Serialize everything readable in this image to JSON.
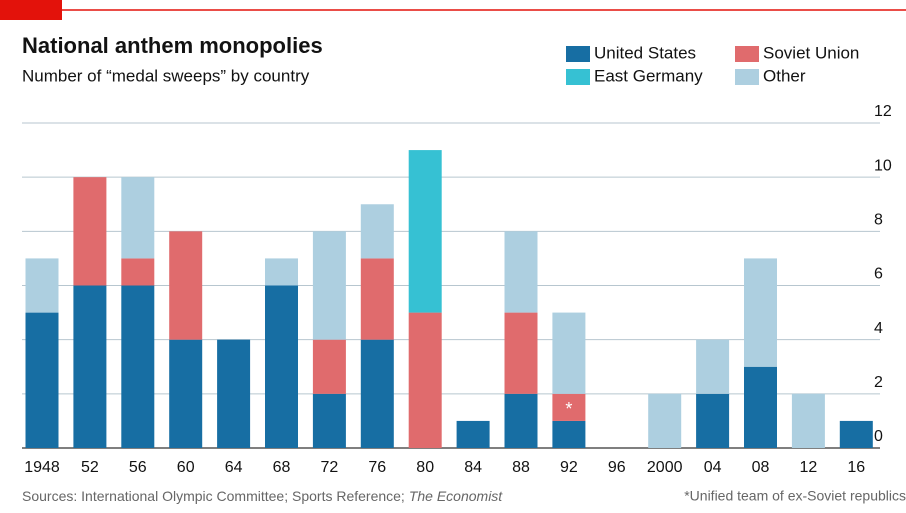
{
  "chart_data": {
    "type": "stacked_bar",
    "title": "National anthem monopolies",
    "subtitle": "Number of “medal sweeps” by country",
    "categories": [
      "1948",
      "52",
      "56",
      "60",
      "64",
      "68",
      "72",
      "76",
      "80",
      "84",
      "88",
      "92",
      "96",
      "2000",
      "04",
      "08",
      "12",
      "16"
    ],
    "series": [
      {
        "name": "United States",
        "color": "#176ea3",
        "values": [
          5,
          6,
          6,
          4,
          4,
          6,
          2,
          4,
          0,
          1,
          2,
          1,
          0,
          0,
          2,
          3,
          0,
          1
        ]
      },
      {
        "name": "Soviet Union",
        "color": "#e06b6d",
        "values": [
          0,
          4,
          1,
          4,
          0,
          0,
          2,
          3,
          5,
          0,
          3,
          1,
          0,
          0,
          0,
          0,
          0,
          0
        ]
      },
      {
        "name": "East Germany",
        "color": "#36c1d3",
        "values": [
          0,
          0,
          0,
          0,
          0,
          0,
          0,
          0,
          6,
          0,
          0,
          0,
          0,
          0,
          0,
          0,
          0,
          0
        ]
      },
      {
        "name": "Other",
        "color": "#adcfe0",
        "values": [
          2,
          0,
          3,
          0,
          0,
          1,
          4,
          2,
          0,
          0,
          3,
          3,
          0,
          2,
          2,
          4,
          2,
          0
        ]
      }
    ],
    "ylim": [
      0,
      12
    ],
    "yticks": [
      0,
      2,
      4,
      6,
      8,
      10,
      12
    ],
    "grid": true,
    "annotation": {
      "text": "*",
      "category": "92",
      "series": "Soviet Union"
    },
    "source": [
      "Sources: International Olympic Committee; Sports Reference;",
      "The Economist"
    ],
    "footnote": "*Unified team of ex-Soviet republics"
  }
}
